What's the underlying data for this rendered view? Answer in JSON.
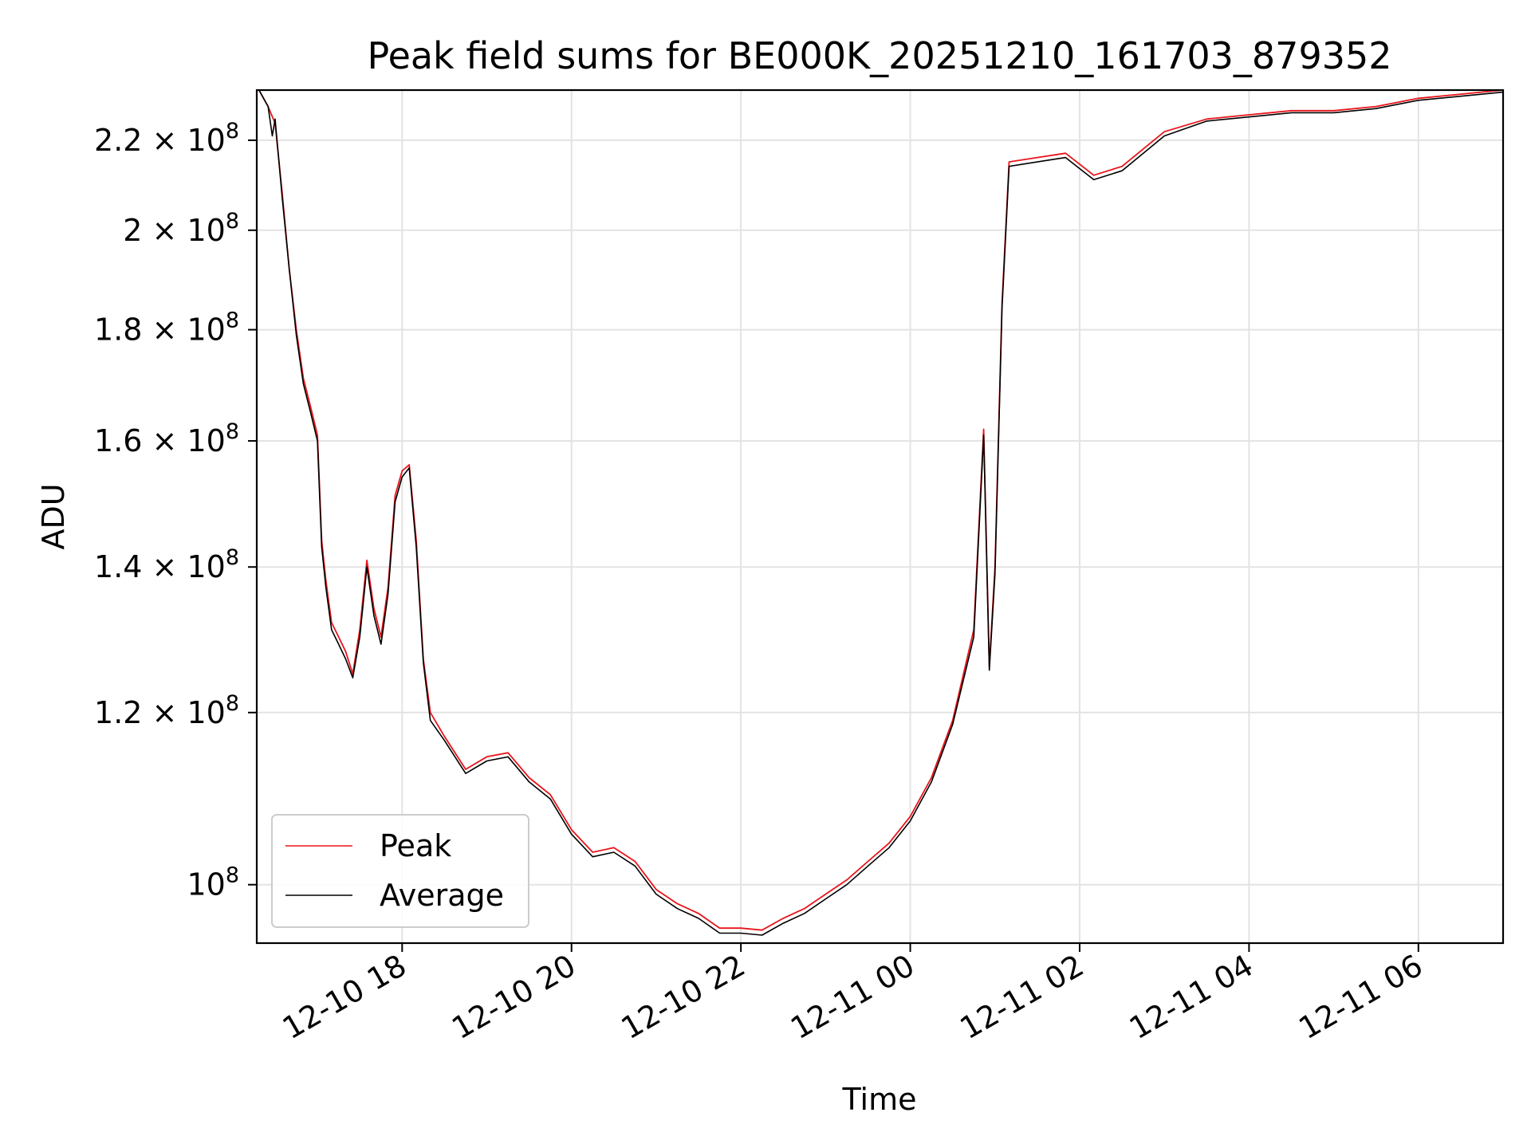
{
  "chart_data": {
    "type": "line",
    "title": "Peak field sums for BE000K_20251210_161703_879352",
    "xlabel": "Time",
    "ylabel": "ADU",
    "yscale": "log",
    "xlim": [
      "2025-12-10 16:17",
      "2025-12-11 07:00"
    ],
    "ylim": [
      94000000,
      232000000
    ],
    "grid": true,
    "legend_position": "lower-left",
    "x_ticks": [
      {
        "t": "2025-12-10 18:00",
        "label": "12-10 18"
      },
      {
        "t": "2025-12-10 20:00",
        "label": "12-10 20"
      },
      {
        "t": "2025-12-10 22:00",
        "label": "12-10 22"
      },
      {
        "t": "2025-12-11 00:00",
        "label": "12-11 00"
      },
      {
        "t": "2025-12-11 02:00",
        "label": "12-11 02"
      },
      {
        "t": "2025-12-11 04:00",
        "label": "12-11 04"
      },
      {
        "t": "2025-12-11 06:00",
        "label": "12-11 06"
      }
    ],
    "y_ticks": [
      {
        "value": 100000000,
        "mantissa": "",
        "exponent": "8"
      },
      {
        "value": 120000000,
        "mantissa": "1.2",
        "exponent": "8"
      },
      {
        "value": 140000000,
        "mantissa": "1.4",
        "exponent": "8"
      },
      {
        "value": 160000000,
        "mantissa": "1.6",
        "exponent": "8"
      },
      {
        "value": 180000000,
        "mantissa": "1.8",
        "exponent": "8"
      },
      {
        "value": 200000000,
        "mantissa": "2",
        "exponent": "8"
      },
      {
        "value": 220000000,
        "mantissa": "2.2",
        "exponent": "8"
      }
    ],
    "series": [
      {
        "name": "Peak",
        "color": "#e8141b",
        "points": [
          [
            "2025-12-10 16:17",
            233000000.0
          ],
          [
            "2025-12-10 16:25",
            228000000.0
          ],
          [
            "2025-12-10 16:30",
            224000000.0
          ],
          [
            "2025-12-10 16:35",
            208000000.0
          ],
          [
            "2025-12-10 16:40",
            192000000.0
          ],
          [
            "2025-12-10 16:45",
            180000000.0
          ],
          [
            "2025-12-10 16:50",
            171000000.0
          ],
          [
            "2025-12-10 16:55",
            166000000.0
          ],
          [
            "2025-12-10 17:00",
            161000000.0
          ],
          [
            "2025-12-10 17:03",
            144000000.0
          ],
          [
            "2025-12-10 17:06",
            138000000.0
          ],
          [
            "2025-12-10 17:10",
            132000000.0
          ],
          [
            "2025-12-10 17:15",
            130000000.0
          ],
          [
            "2025-12-10 17:20",
            128000000.0
          ],
          [
            "2025-12-10 17:25",
            125000000.0
          ],
          [
            "2025-12-10 17:30",
            131000000.0
          ],
          [
            "2025-12-10 17:35",
            141000000.0
          ],
          [
            "2025-12-10 17:40",
            134000000.0
          ],
          [
            "2025-12-10 17:45",
            130000000.0
          ],
          [
            "2025-12-10 17:50",
            137000000.0
          ],
          [
            "2025-12-10 17:55",
            151000000.0
          ],
          [
            "2025-12-10 18:00",
            155000000.0
          ],
          [
            "2025-12-10 18:05",
            156000000.0
          ],
          [
            "2025-12-10 18:10",
            144000000.0
          ],
          [
            "2025-12-10 18:15",
            127000000.0
          ],
          [
            "2025-12-10 18:20",
            120000000.0
          ],
          [
            "2025-12-10 18:30",
            117000000.0
          ],
          [
            "2025-12-10 18:45",
            113000000.0
          ],
          [
            "2025-12-10 19:00",
            114500000.0
          ],
          [
            "2025-12-10 19:15",
            115000000.0
          ],
          [
            "2025-12-10 19:30",
            112000000.0
          ],
          [
            "2025-12-10 19:45",
            110000000.0
          ],
          [
            "2025-12-10 20:00",
            106000000.0
          ],
          [
            "2025-12-10 20:15",
            103500000.0
          ],
          [
            "2025-12-10 20:30",
            104000000.0
          ],
          [
            "2025-12-10 20:45",
            102500000.0
          ],
          [
            "2025-12-10 21:00",
            99500000.0
          ],
          [
            "2025-12-10 21:15",
            98000000.0
          ],
          [
            "2025-12-10 21:30",
            97000000.0
          ],
          [
            "2025-12-10 21:45",
            95500000.0
          ],
          [
            "2025-12-10 22:00",
            95500000.0
          ],
          [
            "2025-12-10 22:15",
            95300000.0
          ],
          [
            "2025-12-10 22:30",
            96500000.0
          ],
          [
            "2025-12-10 22:45",
            97500000.0
          ],
          [
            "2025-12-10 23:00",
            99000000.0
          ],
          [
            "2025-12-10 23:15",
            100500000.0
          ],
          [
            "2025-12-10 23:30",
            102500000.0
          ],
          [
            "2025-12-10 23:45",
            104500000.0
          ],
          [
            "2025-12-11 00:00",
            107500000.0
          ],
          [
            "2025-12-11 00:15",
            112000000.0
          ],
          [
            "2025-12-11 00:30",
            119000000.0
          ],
          [
            "2025-12-11 00:45",
            131000000.0
          ],
          [
            "2025-12-11 00:52",
            162000000.0
          ],
          [
            "2025-12-11 00:56",
            126000000.0
          ],
          [
            "2025-12-11 01:00",
            140000000.0
          ],
          [
            "2025-12-11 01:05",
            185000000.0
          ],
          [
            "2025-12-11 01:10",
            215000000.0
          ],
          [
            "2025-12-11 01:30",
            216000000.0
          ],
          [
            "2025-12-11 01:50",
            217000000.0
          ],
          [
            "2025-12-11 02:10",
            212000000.0
          ],
          [
            "2025-12-11 02:30",
            214000000.0
          ],
          [
            "2025-12-11 03:00",
            222000000.0
          ],
          [
            "2025-12-11 03:30",
            225000000.0
          ],
          [
            "2025-12-11 04:00",
            226000000.0
          ],
          [
            "2025-12-11 04:30",
            227000000.0
          ],
          [
            "2025-12-11 05:00",
            227000000.0
          ],
          [
            "2025-12-11 05:30",
            228000000.0
          ],
          [
            "2025-12-11 06:00",
            230000000.0
          ],
          [
            "2025-12-11 06:30",
            231000000.0
          ],
          [
            "2025-12-11 07:00",
            232000000.0
          ]
        ]
      },
      {
        "name": "Average",
        "color": "#000000",
        "points": [
          [
            "2025-12-10 16:17",
            233000000.0
          ],
          [
            "2025-12-10 16:25",
            228000000.0
          ],
          [
            "2025-12-10 16:28",
            221000000.0
          ],
          [
            "2025-12-10 16:30",
            225000000.0
          ],
          [
            "2025-12-10 16:35",
            207000000.0
          ],
          [
            "2025-12-10 16:40",
            192000000.0
          ],
          [
            "2025-12-10 16:45",
            179000000.0
          ],
          [
            "2025-12-10 16:50",
            170000000.0
          ],
          [
            "2025-12-10 16:55",
            165000000.0
          ],
          [
            "2025-12-10 17:00",
            160000000.0
          ],
          [
            "2025-12-10 17:03",
            143000000.0
          ],
          [
            "2025-12-10 17:06",
            137000000.0
          ],
          [
            "2025-12-10 17:10",
            131000000.0
          ],
          [
            "2025-12-10 17:15",
            129000000.0
          ],
          [
            "2025-12-10 17:20",
            127000000.0
          ],
          [
            "2025-12-10 17:25",
            124500000.0
          ],
          [
            "2025-12-10 17:30",
            130000000.0
          ],
          [
            "2025-12-10 17:35",
            140000000.0
          ],
          [
            "2025-12-10 17:40",
            133000000.0
          ],
          [
            "2025-12-10 17:45",
            129000000.0
          ],
          [
            "2025-12-10 17:50",
            136000000.0
          ],
          [
            "2025-12-10 17:55",
            150000000.0
          ],
          [
            "2025-12-10 18:00",
            154000000.0
          ],
          [
            "2025-12-10 18:05",
            155500000.0
          ],
          [
            "2025-12-10 18:10",
            143000000.0
          ],
          [
            "2025-12-10 18:15",
            126500000.0
          ],
          [
            "2025-12-10 18:20",
            119000000.0
          ],
          [
            "2025-12-10 18:30",
            116500000.0
          ],
          [
            "2025-12-10 18:45",
            112500000.0
          ],
          [
            "2025-12-10 19:00",
            114000000.0
          ],
          [
            "2025-12-10 19:15",
            114500000.0
          ],
          [
            "2025-12-10 19:30",
            111500000.0
          ],
          [
            "2025-12-10 19:45",
            109500000.0
          ],
          [
            "2025-12-10 20:00",
            105500000.0
          ],
          [
            "2025-12-10 20:15",
            103000000.0
          ],
          [
            "2025-12-10 20:30",
            103500000.0
          ],
          [
            "2025-12-10 20:45",
            102000000.0
          ],
          [
            "2025-12-10 21:00",
            99000000.0
          ],
          [
            "2025-12-10 21:15",
            97500000.0
          ],
          [
            "2025-12-10 21:30",
            96500000.0
          ],
          [
            "2025-12-10 21:45",
            95000000.0
          ],
          [
            "2025-12-10 22:00",
            95000000.0
          ],
          [
            "2025-12-10 22:15",
            94800000.0
          ],
          [
            "2025-12-10 22:30",
            96000000.0
          ],
          [
            "2025-12-10 22:45",
            97000000.0
          ],
          [
            "2025-12-10 23:00",
            98500000.0
          ],
          [
            "2025-12-10 23:15",
            100000000.0
          ],
          [
            "2025-12-10 23:30",
            102000000.0
          ],
          [
            "2025-12-10 23:45",
            104000000.0
          ],
          [
            "2025-12-11 00:00",
            107000000.0
          ],
          [
            "2025-12-11 00:15",
            111500000.0
          ],
          [
            "2025-12-11 00:30",
            118500000.0
          ],
          [
            "2025-12-11 00:45",
            130000000.0
          ],
          [
            "2025-12-11 00:52",
            161000000.0
          ],
          [
            "2025-12-11 00:56",
            125500000.0
          ],
          [
            "2025-12-11 01:00",
            139000000.0
          ],
          [
            "2025-12-11 01:05",
            184000000.0
          ],
          [
            "2025-12-11 01:10",
            214000000.0
          ],
          [
            "2025-12-11 01:30",
            215000000.0
          ],
          [
            "2025-12-11 01:50",
            216000000.0
          ],
          [
            "2025-12-11 02:10",
            211000000.0
          ],
          [
            "2025-12-11 02:30",
            213000000.0
          ],
          [
            "2025-12-11 03:00",
            221000000.0
          ],
          [
            "2025-12-11 03:30",
            224500000.0
          ],
          [
            "2025-12-11 04:00",
            225500000.0
          ],
          [
            "2025-12-11 04:30",
            226500000.0
          ],
          [
            "2025-12-11 05:00",
            226500000.0
          ],
          [
            "2025-12-11 05:30",
            227500000.0
          ],
          [
            "2025-12-11 06:00",
            229500000.0
          ],
          [
            "2025-12-11 06:30",
            230500000.0
          ],
          [
            "2025-12-11 07:00",
            231500000.0
          ]
        ]
      }
    ]
  }
}
